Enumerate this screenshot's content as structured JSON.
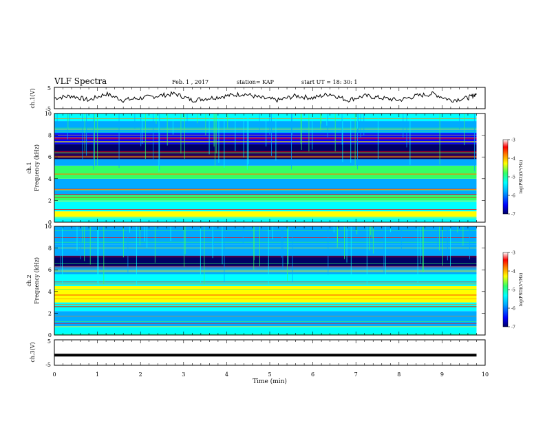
{
  "header": {
    "title": "VLF Spectra",
    "date": "Feb. 1 , 2017",
    "station": "station= KAP",
    "start": "start  UT =   18: 30: 1"
  },
  "colors": {
    "trace": "#000000",
    "colormap": [
      "#000066",
      "#0000ff",
      "#00aaff",
      "#00ffff",
      "#33ff66",
      "#ffff00",
      "#ff8000",
      "#ff0000",
      "#ffffff"
    ]
  },
  "chart_data": [
    {
      "id": "ch1-waveform",
      "type": "line",
      "ylabel": "ch.1(V)",
      "ylim": [
        -5,
        5
      ],
      "yticks": [
        "5",
        "-5"
      ],
      "xlim": [
        0,
        10
      ],
      "x": [
        0,
        0.4,
        0.8,
        1.2,
        1.6,
        2.0,
        2.4,
        2.8,
        3.2,
        3.6,
        4.0,
        4.4,
        4.8,
        5.2,
        5.6,
        6.0,
        6.4,
        6.8,
        7.2,
        7.6,
        8.0,
        8.4,
        8.8,
        9.2,
        9.6,
        9.8
      ],
      "values": [
        0,
        1,
        -1,
        2,
        -1,
        0,
        1,
        2,
        -1,
        0,
        1,
        2,
        0,
        -1,
        1,
        0,
        2,
        -1,
        1,
        0,
        -1,
        1,
        2,
        -1,
        0,
        2
      ]
    },
    {
      "id": "ch1-spectrogram",
      "type": "heatmap",
      "ylabel": "ch.1",
      "ylabel2": "Frequency (kHz)",
      "ylim": [
        0,
        10
      ],
      "yticks": [
        "0",
        "2",
        "4",
        "6",
        "8",
        "10"
      ],
      "xlim": [
        0,
        9.8
      ],
      "colorbar": {
        "label": "log(PSD)(V²/Hz)",
        "range": [
          -7,
          -3
        ],
        "ticks": [
          "-3",
          "-4",
          "-5",
          "-6",
          "-7"
        ]
      },
      "bands": [
        {
          "from": 0,
          "to": 0.5,
          "level": 3
        },
        {
          "from": 0.5,
          "to": 1.0,
          "level": 5
        },
        {
          "from": 1.0,
          "to": 2.0,
          "level": 3
        },
        {
          "from": 2.0,
          "to": 2.5,
          "level": 4
        },
        {
          "from": 2.5,
          "to": 4.0,
          "level": 2
        },
        {
          "from": 4.0,
          "to": 5.2,
          "level": 4
        },
        {
          "from": 5.2,
          "to": 5.8,
          "level": 2
        },
        {
          "from": 5.8,
          "to": 7.2,
          "level": 0
        },
        {
          "from": 7.2,
          "to": 8.2,
          "level": 1
        },
        {
          "from": 8.2,
          "to": 9.3,
          "level": 2
        },
        {
          "from": 9.3,
          "to": 10,
          "level": 3
        }
      ]
    },
    {
      "id": "ch2-spectrogram",
      "type": "heatmap",
      "ylabel": "ch.2",
      "ylabel2": "Frequency (kHz)",
      "ylim": [
        0,
        10
      ],
      "yticks": [
        "0",
        "2",
        "4",
        "6",
        "8",
        "10"
      ],
      "xlim": [
        0,
        9.8
      ],
      "colorbar": {
        "label": "log(PSD)(V²/Hz)",
        "range": [
          -7,
          -3
        ],
        "ticks": [
          "-3",
          "-4",
          "-5",
          "-6",
          "-7"
        ]
      },
      "bands": [
        {
          "from": 0,
          "to": 0.8,
          "level": 3
        },
        {
          "from": 0.8,
          "to": 2.2,
          "level": 2
        },
        {
          "from": 2.2,
          "to": 3.0,
          "level": 3
        },
        {
          "from": 3.0,
          "to": 4.5,
          "level": 5
        },
        {
          "from": 4.5,
          "to": 5.6,
          "level": 3
        },
        {
          "from": 5.6,
          "to": 6.3,
          "level": 2
        },
        {
          "from": 6.3,
          "to": 7.3,
          "level": 0
        },
        {
          "from": 7.3,
          "to": 8.3,
          "level": 2
        },
        {
          "from": 8.3,
          "to": 10,
          "level": 2
        }
      ]
    },
    {
      "id": "ch3-waveform",
      "type": "line",
      "ylabel": "ch.3(V)",
      "ylim": [
        -5,
        5
      ],
      "yticks": [
        "5",
        "-5"
      ],
      "xlim": [
        0,
        10
      ],
      "xlabel": "Time (min)",
      "xticks": [
        "0",
        "1",
        "2",
        "3",
        "4",
        "5",
        "6",
        "7",
        "8",
        "9",
        "10"
      ],
      "x": [
        0,
        9.8
      ],
      "values": [
        -1,
        -1
      ]
    }
  ]
}
